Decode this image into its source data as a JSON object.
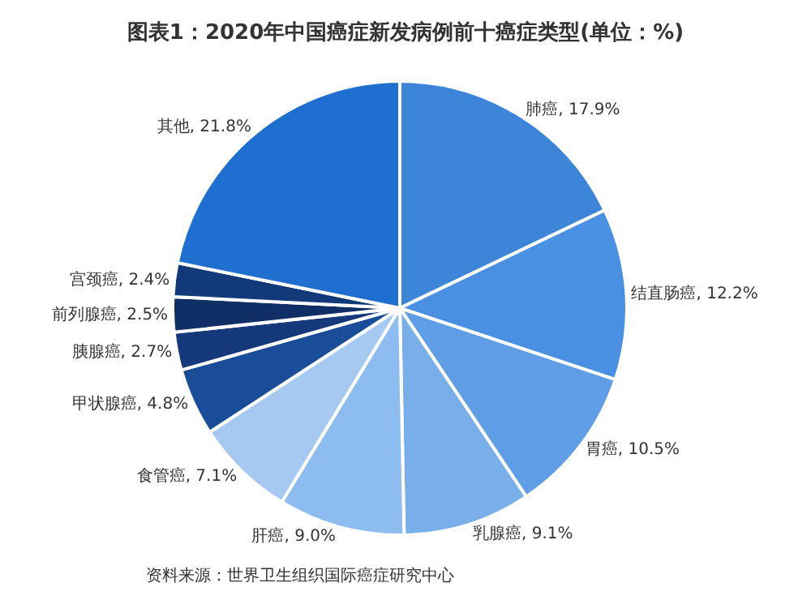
{
  "chart_data": {
    "type": "pie",
    "title": "图表1：2020年中国癌症新发病例前十癌症类型(单位：%)",
    "categories": [
      "肺癌",
      "结直肠癌",
      "胃癌",
      "乳腺癌",
      "肝癌",
      "食管癌",
      "甲状腺癌",
      "胰腺癌",
      "前列腺癌",
      "宫颈癌",
      "其他"
    ],
    "values": [
      17.9,
      12.2,
      10.5,
      9.1,
      9.0,
      7.1,
      4.8,
      2.7,
      2.5,
      2.4,
      21.8
    ],
    "value_labels": [
      "17.9%",
      "12.2%",
      "10.5%",
      "9.1%",
      "9.0%",
      "7.1%",
      "4.8%",
      "2.7%",
      "2.5%",
      "2.4%",
      "21.8%"
    ],
    "colors": [
      "#3d85d8",
      "#4a90e2",
      "#5f9de6",
      "#78aeea",
      "#8dbcf0",
      "#a6c9f2",
      "#1a4d99",
      "#15397a",
      "#0f2f66",
      "#123a7a",
      "#1f6fd1"
    ],
    "legend": false,
    "annotations": [
      "资料来源：世界卫生组织国际癌症研究中心"
    ]
  }
}
